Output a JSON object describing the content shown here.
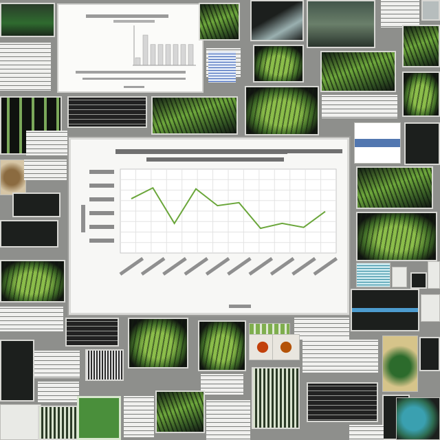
{
  "collage": {
    "colors": {
      "background": "#8e8f8c",
      "accent_green": "#6aa63a",
      "panel_dark": "#1c1f1d"
    },
    "tiles": [
      {
        "kind": "dark-dashboard"
      },
      {
        "kind": "bar-chart"
      },
      {
        "kind": "green-plant"
      },
      {
        "kind": "document"
      },
      {
        "kind": "table"
      }
    ]
  },
  "chart_data": [
    {
      "type": "bar",
      "categories": [
        "",
        "",
        "",
        "",
        "",
        "",
        "",
        ""
      ],
      "values": [
        20,
        80,
        55,
        55,
        55,
        55,
        55,
        55
      ],
      "ylim": [
        0,
        100
      ]
    },
    {
      "type": "line",
      "categories": [
        "",
        "",
        "",
        "",
        "",
        "",
        "",
        "",
        "",
        ""
      ],
      "values": [
        35,
        46,
        10,
        45,
        28,
        31,
        5,
        10,
        6,
        22
      ],
      "ylim": [
        -20,
        65
      ],
      "grid": true,
      "series_color": "#6aa63a"
    }
  ]
}
